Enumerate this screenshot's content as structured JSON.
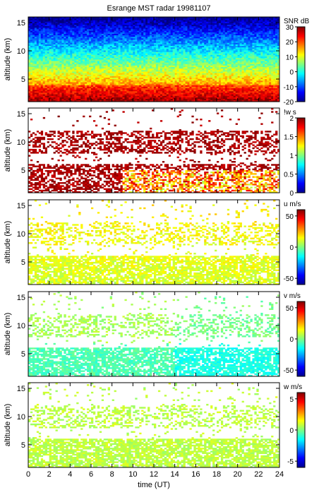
{
  "figure": {
    "title": "Esrange MST radar 19981107",
    "xlabel": "time (UT)"
  },
  "chart_data": [
    {
      "type": "heatmap",
      "panel": "snr",
      "ylabel": "altitude (km)",
      "colorbar_label": "SNR dB",
      "colorbar_ticks": [
        "30",
        "20",
        "10",
        "0",
        "-10",
        "-20"
      ],
      "colorbar_range": [
        -20,
        30
      ],
      "x_ticks": [
        "0",
        "2",
        "4",
        "6",
        "8",
        "10",
        "12",
        "14",
        "16",
        "18",
        "20",
        "22",
        "24"
      ],
      "xlim": [
        0,
        24
      ],
      "y_ticks": [
        "5",
        "10",
        "15"
      ],
      "ylim": [
        1,
        16
      ]
    },
    {
      "type": "heatmap",
      "panel": "width",
      "ylabel": "altitude (km)",
      "colorbar_label": "!w s",
      "colorbar_ticks": [
        "2",
        "1.5",
        "1",
        "0.5",
        "0"
      ],
      "colorbar_range": [
        0,
        2
      ],
      "x_ticks": [
        "0",
        "2",
        "4",
        "6",
        "8",
        "10",
        "12",
        "14",
        "16",
        "18",
        "20",
        "22",
        "24"
      ],
      "xlim": [
        0,
        24
      ],
      "y_ticks": [
        "5",
        "10",
        "15"
      ],
      "ylim": [
        1,
        16
      ]
    },
    {
      "type": "heatmap",
      "panel": "u",
      "ylabel": "altitude (km)",
      "colorbar_label": "u m/s",
      "colorbar_ticks": [
        "50",
        "0",
        "-50"
      ],
      "colorbar_range": [
        -60,
        60
      ],
      "x_ticks": [
        "0",
        "2",
        "4",
        "6",
        "8",
        "10",
        "12",
        "14",
        "16",
        "18",
        "20",
        "22",
        "24"
      ],
      "xlim": [
        0,
        24
      ],
      "y_ticks": [
        "5",
        "10",
        "15"
      ],
      "ylim": [
        1,
        16
      ]
    },
    {
      "type": "heatmap",
      "panel": "v",
      "ylabel": "altitude (km)",
      "colorbar_label": "v m/s",
      "colorbar_ticks": [
        "50",
        "0",
        "-50"
      ],
      "colorbar_range": [
        -60,
        60
      ],
      "x_ticks": [
        "0",
        "2",
        "4",
        "6",
        "8",
        "10",
        "12",
        "14",
        "16",
        "18",
        "20",
        "22",
        "24"
      ],
      "xlim": [
        0,
        24
      ],
      "y_ticks": [
        "5",
        "10",
        "15"
      ],
      "ylim": [
        1,
        16
      ]
    },
    {
      "type": "heatmap",
      "panel": "w",
      "ylabel": "altitude (km)",
      "colorbar_label": "w m/s",
      "colorbar_ticks": [
        "5",
        "0",
        "-5"
      ],
      "colorbar_range": [
        -6,
        6
      ],
      "x_ticks": [
        "0",
        "2",
        "4",
        "6",
        "8",
        "10",
        "12",
        "14",
        "16",
        "18",
        "20",
        "22",
        "24"
      ],
      "xlim": [
        0,
        24
      ],
      "y_ticks": [
        "5",
        "10",
        "15"
      ],
      "ylim": [
        1,
        16
      ]
    }
  ]
}
